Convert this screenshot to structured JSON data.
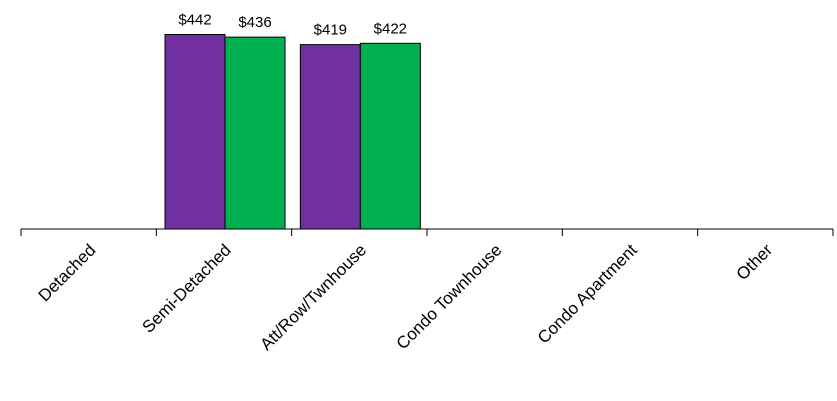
{
  "chart_data": {
    "type": "bar",
    "categories": [
      "Detached",
      "Semi-Detached",
      "Att/Row/Twnhouse",
      "Condo Townhouse",
      "Condo Apartment",
      "Other"
    ],
    "series": [
      {
        "color": "#7030A0",
        "values": [
          null,
          442,
          419,
          null,
          null,
          null
        ]
      },
      {
        "color": "#00B050",
        "values": [
          null,
          436,
          422,
          null,
          null,
          null
        ]
      }
    ],
    "data_labels": [
      [
        null,
        "$442",
        "$419",
        null,
        null,
        null
      ],
      [
        null,
        "$436",
        "$422",
        null,
        null,
        null
      ]
    ],
    "grid": false,
    "legend": "none"
  }
}
